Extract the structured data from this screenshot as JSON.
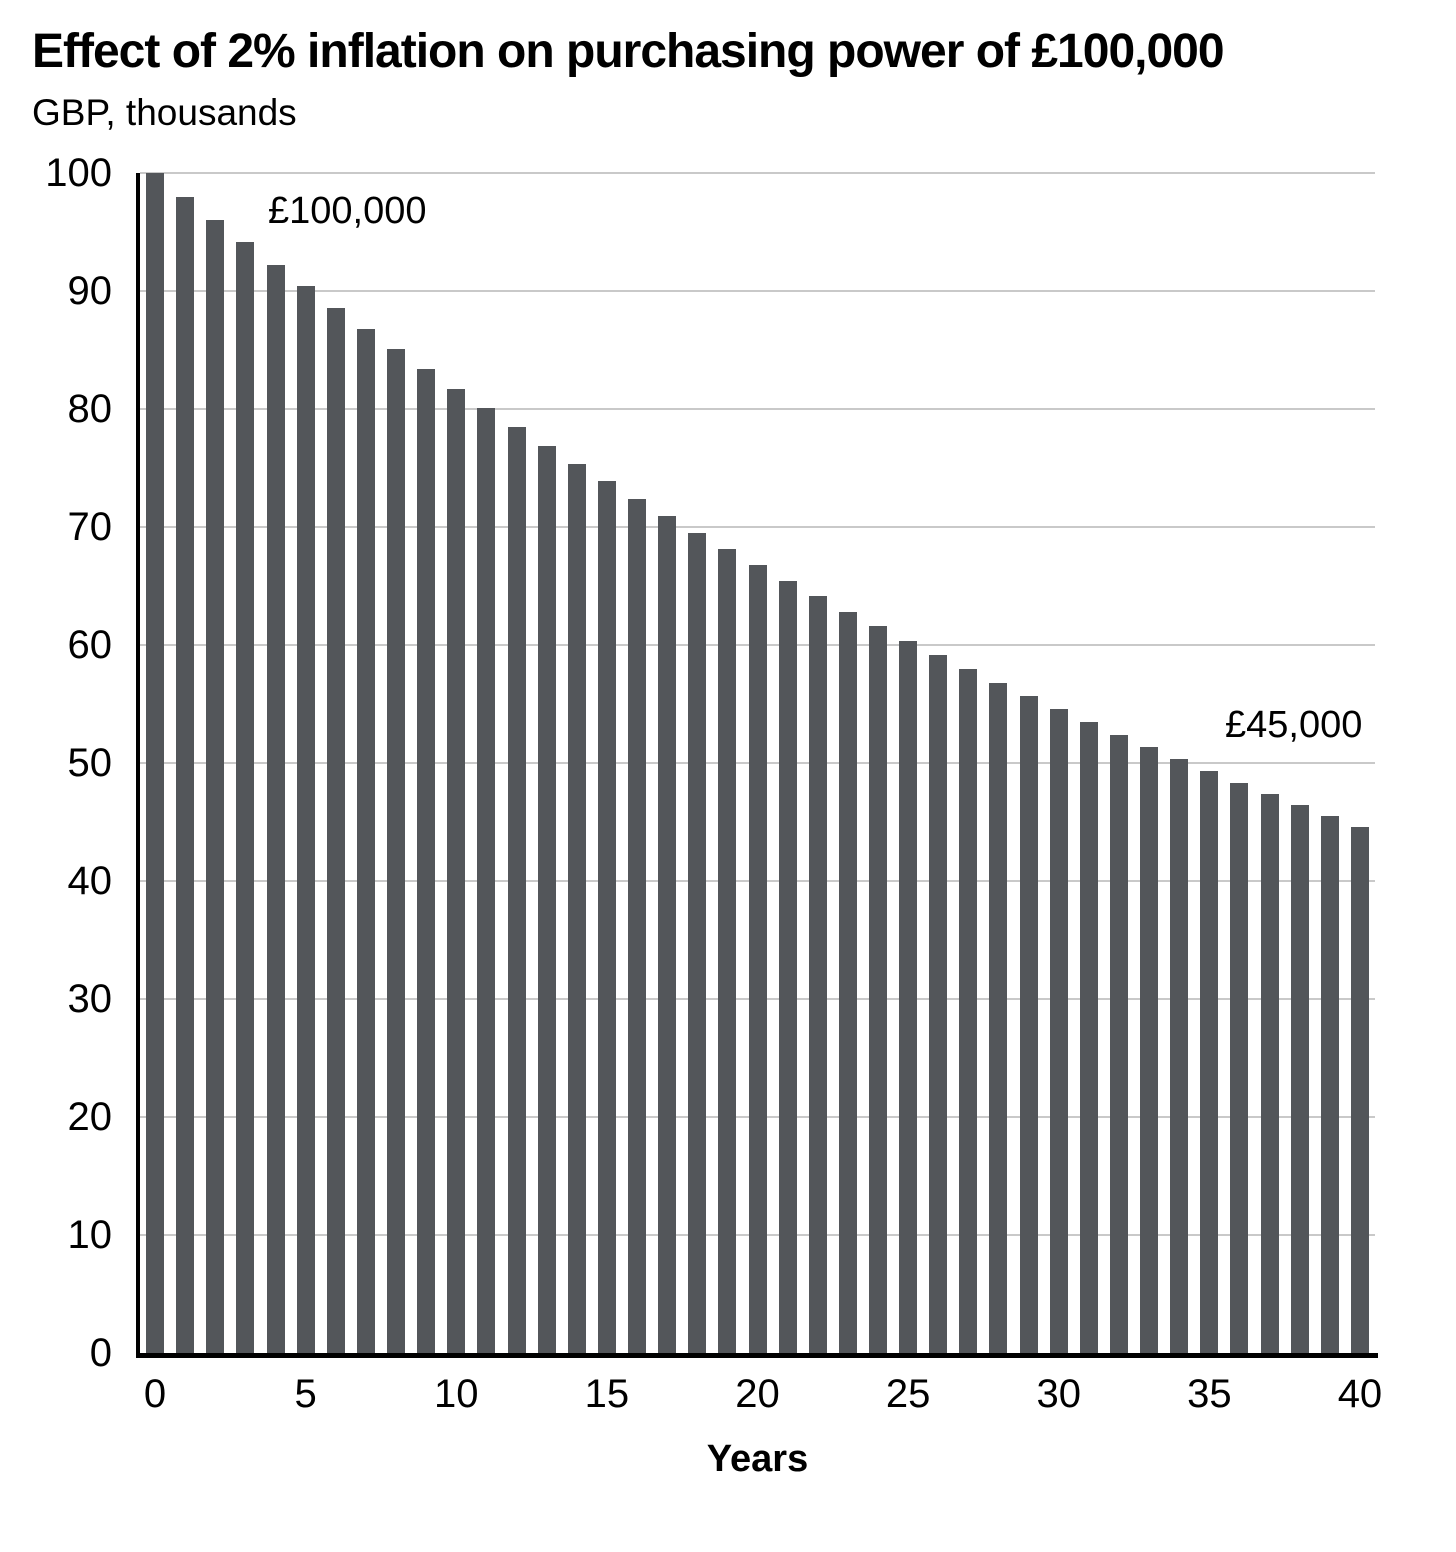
{
  "chart_data": {
    "type": "bar",
    "title": "Effect of 2% inflation on purchasing power of £100,000",
    "subtitle": "GBP, thousands",
    "xlabel": "Years",
    "ylabel": "GBP, thousands",
    "x": [
      0,
      1,
      2,
      3,
      4,
      5,
      6,
      7,
      8,
      9,
      10,
      11,
      12,
      13,
      14,
      15,
      16,
      17,
      18,
      19,
      20,
      21,
      22,
      23,
      24,
      25,
      26,
      27,
      28,
      29,
      30,
      31,
      32,
      33,
      34,
      35,
      36,
      37,
      38,
      39,
      40
    ],
    "values": [
      100.0,
      98.0,
      96.04,
      94.12,
      92.24,
      90.39,
      88.58,
      86.81,
      85.08,
      83.37,
      81.71,
      80.07,
      78.47,
      76.9,
      75.36,
      73.86,
      72.38,
      70.93,
      69.51,
      68.12,
      66.76,
      65.43,
      64.12,
      62.83,
      61.58,
      60.35,
      59.14,
      57.95,
      56.79,
      55.66,
      54.55,
      53.46,
      52.39,
      51.34,
      50.31,
      49.31,
      48.32,
      47.36,
      46.41,
      45.48,
      44.57
    ],
    "ylim": [
      0,
      100
    ],
    "yticks": [
      0,
      10,
      20,
      30,
      40,
      50,
      60,
      70,
      80,
      90,
      100
    ],
    "xticks": [
      0,
      5,
      10,
      15,
      20,
      25,
      30,
      35,
      40
    ],
    "grid": "horizontal",
    "legend": "none",
    "bar_color": "#53565a",
    "gridline_color": "#c9c9c9",
    "axis_color": "#000000",
    "annotations": [
      {
        "text": "£100,000",
        "year": 0,
        "meaning": "initial purchasing power"
      },
      {
        "text": "£45,000",
        "year": 40,
        "meaning": "purchasing power after 40 years"
      }
    ]
  }
}
